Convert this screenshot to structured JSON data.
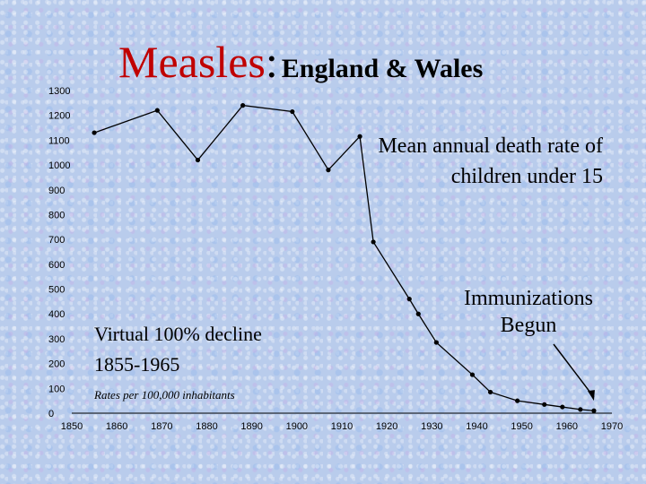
{
  "title": {
    "main": "Measles",
    "colon": ":",
    "sub": "England & Wales"
  },
  "annotations": {
    "description": "Mean annual death rate of children under 15",
    "immunizations": "Immunizations Begun",
    "decline_line1": "Virtual 100% decline",
    "decline_line2": "1855-1965",
    "rates_note": "Rates per 100,000 inhabitants"
  },
  "colors": {
    "title_accent": "#c00000",
    "line": "#000000",
    "background": "#b9ccec"
  },
  "chart_data": {
    "type": "line",
    "title": "Measles: England & Wales",
    "xlabel": "",
    "ylabel": "",
    "xlim": [
      1850,
      1970
    ],
    "ylim": [
      0,
      1300
    ],
    "x_ticks": [
      "1850",
      "1860",
      "1870",
      "1880",
      "1890",
      "1900",
      "1910",
      "1920",
      "1930",
      "1940",
      "1950",
      "1960",
      "1970"
    ],
    "y_ticks": [
      "0",
      "100",
      "200",
      "300",
      "400",
      "500",
      "600",
      "700",
      "800",
      "900",
      "1000",
      "1100",
      "1200",
      "1300"
    ],
    "grid": false,
    "series": [
      {
        "name": "Mean annual death rate of children under 15",
        "x": [
          1855,
          1869,
          1878,
          1888,
          1899,
          1907,
          1914,
          1917,
          1925,
          1927,
          1931,
          1939,
          1943,
          1949,
          1955,
          1959,
          1963,
          1966
        ],
        "y": [
          1130,
          1220,
          1020,
          1240,
          1215,
          980,
          1115,
          690,
          460,
          400,
          285,
          155,
          85,
          50,
          35,
          25,
          15,
          10
        ]
      }
    ],
    "annotation_arrow": {
      "label": "Immunizations Begun",
      "x": 1966,
      "y": 50
    }
  }
}
